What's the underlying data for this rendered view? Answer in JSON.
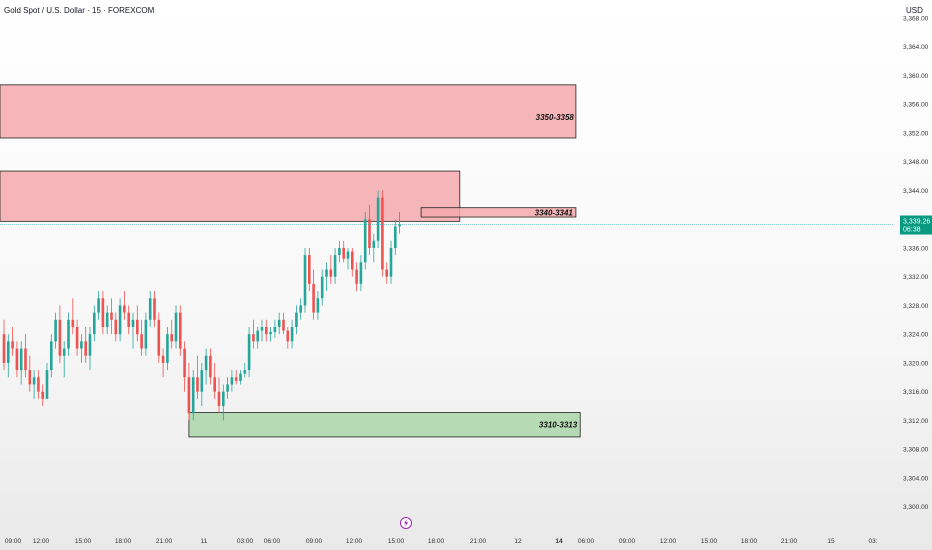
{
  "header": {
    "title": "Gold Spot / U.S. Dollar · 15 · FOREXCOM",
    "currency": "USD"
  },
  "colors": {
    "up": "#26a69a",
    "down": "#ef5350",
    "supply_fill": "#f4a9ad",
    "demand_fill": "#a8d4a4",
    "price_line": "#26a69a",
    "price_tag": "#089981",
    "lightning": "#9c27b0"
  },
  "icons": {
    "event_marker": "lightning-bolt-icon"
  },
  "chart_data": {
    "type": "candlestick",
    "title": "Gold Spot / U.S. Dollar · 15 · FOREXCOM",
    "ylim": [
      3298,
      3368
    ],
    "y_ticks": [
      "3,300.00",
      "3,304.00",
      "3,308.00",
      "3,312.00",
      "3,316.00",
      "3,320.00",
      "3,324.00",
      "3,328.00",
      "3,332.00",
      "3,336.00",
      "3,340.00",
      "3,344.00",
      "3,348.00",
      "3,352.00",
      "3,356.00",
      "3,360.00",
      "3,364.00",
      "3,368.00"
    ],
    "x_ticks": [
      "09:00",
      "12:00",
      "15:00",
      "18:00",
      "21:00",
      "11",
      "03:00",
      "06:00",
      "09:00",
      "12:00",
      "15:00",
      "18:00",
      "21:00",
      "12",
      "14",
      "06:00",
      "09:00",
      "12:00",
      "15:00",
      "18:00",
      "21:00",
      "15",
      "03:"
    ],
    "current_price": {
      "value": 3339.26,
      "label": "3,339.26",
      "countdown": "06:38"
    },
    "zones": [
      {
        "label": "",
        "low": 3351.3,
        "high": 3358.7,
        "color": "red",
        "x_end_index": 133
      },
      {
        "label": "3350-3358",
        "low": 3352.5,
        "high": 3356.0,
        "color": "red",
        "x_end_index": 133,
        "label_only": true
      },
      {
        "label": "",
        "low": 3339.7,
        "high": 3346.7,
        "color": "red",
        "x_end_index": 106
      },
      {
        "label": "3340-3341",
        "low": 3340.3,
        "high": 3341.6,
        "color": "red",
        "x_start_index": 97,
        "x_end_index": 133
      },
      {
        "label": "3310-3313",
        "low": 3309.7,
        "high": 3313.1,
        "color": "green",
        "x_start_index": 43,
        "x_end_index": 134
      }
    ],
    "candles": [
      [
        3324,
        3326,
        3319,
        3320
      ],
      [
        3320,
        3324,
        3318,
        3323
      ],
      [
        3323,
        3325,
        3321,
        3322
      ],
      [
        3322,
        3323,
        3318,
        3319
      ],
      [
        3319,
        3323,
        3317,
        3322
      ],
      [
        3322,
        3324,
        3318,
        3319
      ],
      [
        3319,
        3321,
        3316,
        3317
      ],
      [
        3317,
        3319,
        3315,
        3318
      ],
      [
        3318,
        3319,
        3315,
        3316
      ],
      [
        3316,
        3317,
        3314,
        3315
      ],
      [
        3315,
        3320,
        3315,
        3319
      ],
      [
        3319,
        3324,
        3318,
        3323
      ],
      [
        3323,
        3327,
        3322,
        3326
      ],
      [
        3326,
        3328,
        3320,
        3321
      ],
      [
        3321,
        3323,
        3318,
        3322
      ],
      [
        3322,
        3327,
        3321,
        3326
      ],
      [
        3326,
        3329,
        3324,
        3325
      ],
      [
        3325,
        3326,
        3321,
        3322
      ],
      [
        3322,
        3324,
        3320,
        3323
      ],
      [
        3323,
        3325,
        3320,
        3321
      ],
      [
        3321,
        3325,
        3319,
        3324
      ],
      [
        3324,
        3328,
        3323,
        3327
      ],
      [
        3327,
        3330,
        3326,
        3329
      ],
      [
        3329,
        3330,
        3324,
        3325
      ],
      [
        3325,
        3328,
        3324,
        3327
      ],
      [
        3327,
        3329,
        3324,
        3326
      ],
      [
        3326,
        3327,
        3323,
        3324
      ],
      [
        3324,
        3329,
        3323,
        3328
      ],
      [
        3328,
        3330,
        3326,
        3327
      ],
      [
        3327,
        3328,
        3324,
        3325
      ],
      [
        3325,
        3327,
        3322,
        3326
      ],
      [
        3326,
        3328,
        3323,
        3324
      ],
      [
        3324,
        3326,
        3321,
        3322
      ],
      [
        3322,
        3327,
        3321,
        3326
      ],
      [
        3326,
        3330,
        3325,
        3329
      ],
      [
        3329,
        3330,
        3325,
        3326
      ],
      [
        3326,
        3327,
        3320,
        3321
      ],
      [
        3321,
        3322,
        3318,
        3320
      ],
      [
        3320,
        3325,
        3319,
        3324
      ],
      [
        3324,
        3326,
        3322,
        3323
      ],
      [
        3323,
        3328,
        3322,
        3327
      ],
      [
        3327,
        3328,
        3321,
        3322
      ],
      [
        3322,
        3323,
        3316,
        3318
      ],
      [
        3318,
        3320,
        3312,
        3313
      ],
      [
        3313,
        3319,
        3312,
        3318
      ],
      [
        3318,
        3321,
        3315,
        3316
      ],
      [
        3316,
        3320,
        3314,
        3319
      ],
      [
        3319,
        3322,
        3317,
        3321
      ],
      [
        3321,
        3322,
        3317,
        3318
      ],
      [
        3318,
        3320,
        3315,
        3316
      ],
      [
        3316,
        3318,
        3313,
        3314
      ],
      [
        3314,
        3317,
        3312,
        3316
      ],
      [
        3316,
        3318,
        3315,
        3317
      ],
      [
        3317,
        3319,
        3316,
        3318
      ],
      [
        3318,
        3319,
        3317,
        3317.5
      ],
      [
        3317.5,
        3319,
        3317,
        3318.5
      ],
      [
        3318.5,
        3320,
        3318,
        3319
      ],
      [
        3319,
        3325,
        3318,
        3324
      ],
      [
        3324,
        3326,
        3322,
        3323
      ],
      [
        3323,
        3325,
        3322,
        3324.5
      ],
      [
        3324.5,
        3326,
        3323,
        3325
      ],
      [
        3325,
        3326,
        3323,
        3324
      ],
      [
        3324,
        3325,
        3323,
        3324.3
      ],
      [
        3324.3,
        3326,
        3323.5,
        3325
      ],
      [
        3325,
        3327,
        3324,
        3326
      ],
      [
        3326,
        3327,
        3324,
        3324.5
      ],
      [
        3324.5,
        3325,
        3322,
        3323
      ],
      [
        3323,
        3326,
        3322,
        3325
      ],
      [
        3325,
        3328,
        3324,
        3327
      ],
      [
        3327,
        3329,
        3326,
        3328
      ],
      [
        3328,
        3336,
        3327,
        3335
      ],
      [
        3335,
        3336,
        3330,
        3331
      ],
      [
        3331,
        3333,
        3326,
        3327
      ],
      [
        3327,
        3330,
        3326,
        3329
      ],
      [
        3329,
        3333,
        3328,
        3332
      ],
      [
        3332,
        3334,
        3330,
        3333
      ],
      [
        3333,
        3335,
        3331,
        3332
      ],
      [
        3332,
        3336,
        3331,
        3335
      ],
      [
        3335,
        3337,
        3334,
        3336
      ],
      [
        3336,
        3337,
        3334,
        3334.5
      ],
      [
        3334.5,
        3336,
        3333,
        3335.5
      ],
      [
        3335.5,
        3336,
        3332,
        3333
      ],
      [
        3333,
        3334,
        3330,
        3331
      ],
      [
        3331,
        3335,
        3330,
        3334
      ],
      [
        3334,
        3341,
        3333,
        3340
      ],
      [
        3340,
        3342,
        3335,
        3336
      ],
      [
        3336,
        3338,
        3334,
        3337
      ],
      [
        3337,
        3344,
        3336,
        3343
      ],
      [
        3343,
        3344,
        3332,
        3333
      ],
      [
        3333,
        3334,
        3331,
        3332
      ],
      [
        3332,
        3337,
        3331,
        3336
      ],
      [
        3336,
        3340,
        3335,
        3339
      ],
      [
        3339,
        3341,
        3338,
        3339.26
      ]
    ]
  }
}
